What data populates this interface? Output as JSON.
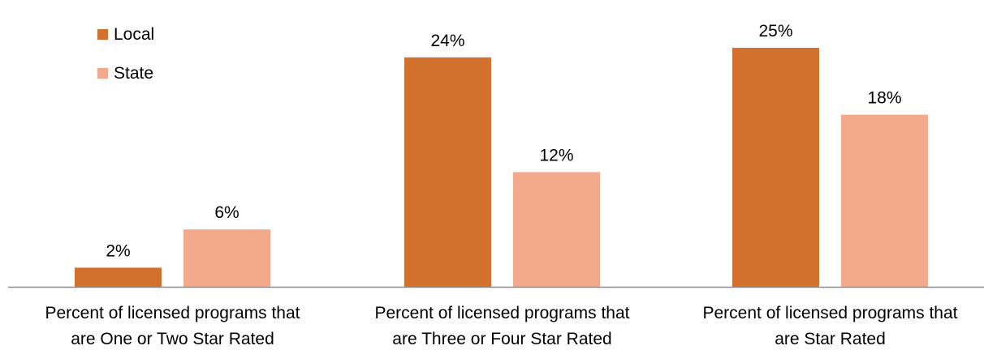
{
  "chart_data": {
    "type": "bar",
    "title": "",
    "xlabel": "",
    "ylabel": "",
    "ylim": [
      0,
      26
    ],
    "grid": false,
    "legend_placement": "top-left",
    "categories": [
      [
        "Percent of licensed programs that",
        "are One or Two Star Rated"
      ],
      [
        "Percent of licensed programs that",
        "are Three or Four Star Rated"
      ],
      [
        "Percent of licensed programs that",
        "are Star Rated"
      ]
    ],
    "series": [
      {
        "name": "Local",
        "color": "#D2702E",
        "values": [
          2,
          24,
          25
        ],
        "labels": [
          "2%",
          "24%",
          "25%"
        ]
      },
      {
        "name": "State",
        "color": "#F2A98C",
        "values": [
          6,
          12,
          18
        ],
        "labels": [
          "6%",
          "12%",
          "18%"
        ]
      }
    ]
  }
}
